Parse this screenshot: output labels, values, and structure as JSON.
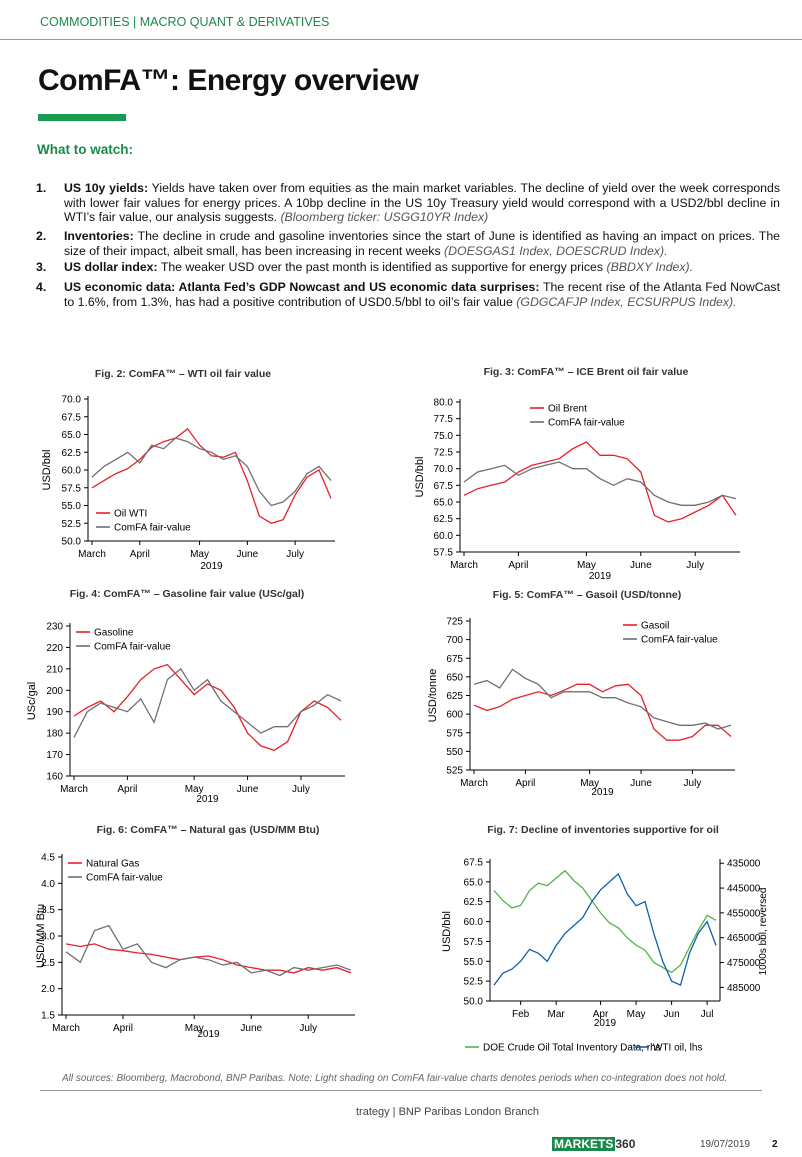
{
  "header": {
    "section": "COMMODITIES | MACRO QUANT & DERIVATIVES",
    "title": "ComFA™: Energy overview"
  },
  "what_to_watch": {
    "heading": "What to watch:",
    "items": [
      {
        "number": "1.",
        "label": "US 10y yields:",
        "text": "Yields have taken over from equities as the main market variables. The decline of yield over the week corresponds with lower fair values for energy prices. A 10bp decline in the US 10y Treasury yield would correspond with a USD2/bbl decline in WTI’s fair value, our analysis suggests.",
        "source": "(Bloomberg ticker: USGG10YR Index)"
      },
      {
        "number": "2.",
        "label": "Inventories:",
        "text": "The decline in crude and gasoline inventories since the start of June is identified as having an impact on prices. The size of their impact, albeit small, has been increasing in recent weeks",
        "source": "(DOESGAS1 Index, DOESCRUD Index)."
      },
      {
        "number": "3.",
        "label": "US dollar index:",
        "text": "The weaker USD over the past month is identified as supportive for energy prices",
        "source": "(BBDXY Index)."
      },
      {
        "number": "4.",
        "label": "US economic data: Atlanta Fed’s GDP Nowcast and US economic data surprises:",
        "text": "The recent rise of the Atlanta Fed NowCast to 1.6%, from 1.3%, has had a positive contribution of USD0.5/bbl to oil’s fair value",
        "source": "(GDGCAFJP Index, ECSURPUS Index)."
      }
    ]
  },
  "chart_data": [
    {
      "type": "line",
      "title": "Fig. 2: ComFA™ – WTI oil fair value",
      "ylabel": "USD/bbl",
      "xlabel": "2019",
      "legend": "lower left",
      "categories": [
        "March",
        null,
        null,
        null,
        "April",
        null,
        null,
        null,
        null,
        "May",
        null,
        null,
        null,
        "June",
        null,
        null,
        null,
        "July",
        null,
        null,
        null
      ],
      "ylim": [
        50,
        70
      ],
      "yticks": [
        {
          "value": 50,
          "label": "50.0"
        },
        52.5,
        {
          "value": 55,
          "label": "55.0"
        },
        57.5,
        {
          "value": 60,
          "label": "60.0"
        },
        62.5,
        {
          "value": 65,
          "label": "65.0"
        },
        67.5,
        {
          "value": 70,
          "label": "70.0"
        }
      ],
      "series": [
        {
          "name": "Oil WTI",
          "color": "#e8202a",
          "values": [
            57.5,
            58.5,
            59.5,
            60.2,
            61.5,
            63.2,
            64.0,
            64.5,
            65.8,
            63.5,
            62.0,
            61.8,
            62.5,
            58.5,
            53.5,
            52.5,
            53.0,
            56.5,
            59.0,
            60.0,
            56.0
          ]
        },
        {
          "name": "ComFA fair-value",
          "color": "#707070",
          "values": [
            59.0,
            60.5,
            61.5,
            62.5,
            61.0,
            63.5,
            63.0,
            64.5,
            64.0,
            63.0,
            62.5,
            61.5,
            62.0,
            60.5,
            57.0,
            55.0,
            55.5,
            57.0,
            59.5,
            60.5,
            58.5
          ]
        }
      ]
    },
    {
      "type": "line",
      "title": "Fig. 3: ComFA™ – ICE Brent oil fair value",
      "ylabel": "USD/bbl",
      "xlabel": "2019",
      "legend": "upper center",
      "categories": [
        "March",
        null,
        null,
        null,
        "April",
        null,
        null,
        null,
        null,
        "May",
        null,
        null,
        null,
        "June",
        null,
        null,
        null,
        "July",
        null,
        null,
        null
      ],
      "ylim": [
        57.5,
        80
      ],
      "yticks": [
        57.5,
        {
          "value": 60,
          "label": "60.0"
        },
        62.5,
        {
          "value": 65,
          "label": "65.0"
        },
        67.5,
        {
          "value": 70,
          "label": "70.0"
        },
        72.5,
        {
          "value": 75,
          "label": "75.0"
        },
        77.5,
        {
          "value": 80,
          "label": "80.0"
        }
      ],
      "series": [
        {
          "name": "Oil Brent",
          "color": "#e8202a",
          "values": [
            66.0,
            67.0,
            67.5,
            68.0,
            69.5,
            70.5,
            71.0,
            71.5,
            73.0,
            74.0,
            72.0,
            72.0,
            71.5,
            69.5,
            63.0,
            62.0,
            62.5,
            63.5,
            64.5,
            66.0,
            63.0
          ]
        },
        {
          "name": "ComFA fair-value",
          "color": "#707070",
          "values": [
            68.0,
            69.5,
            70.0,
            70.5,
            69.0,
            70.0,
            70.5,
            71.0,
            70.0,
            70.0,
            68.5,
            67.5,
            68.5,
            68.0,
            66.0,
            65.0,
            64.5,
            64.5,
            65.0,
            66.0,
            65.5
          ]
        }
      ]
    },
    {
      "type": "line",
      "title": "Fig. 4: ComFA™ – Gasoline fair value (USc/gal)",
      "ylabel": "USc/gal",
      "xlabel": "2019",
      "legend": "upper left",
      "categories": [
        "March",
        null,
        null,
        null,
        "April",
        null,
        null,
        null,
        null,
        "May",
        null,
        null,
        null,
        "June",
        null,
        null,
        null,
        "July",
        null,
        null,
        null
      ],
      "ylim": [
        160,
        230
      ],
      "yticks": [
        160,
        170,
        180,
        190,
        200,
        210,
        220,
        230
      ],
      "series": [
        {
          "name": "Gasoline",
          "color": "#e8202a",
          "values": [
            188,
            192,
            195,
            190,
            197,
            205,
            210,
            212,
            205,
            198,
            203,
            200,
            192,
            180,
            174,
            172,
            176,
            190,
            195,
            192,
            186
          ]
        },
        {
          "name": "ComFA fair-value",
          "color": "#707070",
          "values": [
            178,
            190,
            194,
            192,
            190,
            196,
            185,
            205,
            210,
            200,
            205,
            195,
            190,
            185,
            180,
            183,
            183,
            190,
            193,
            198,
            195
          ]
        }
      ]
    },
    {
      "type": "line",
      "title": "Fig. 5: ComFA™ – Gasoil (USD/tonne)",
      "ylabel": "USD/tonne",
      "xlabel": "2019",
      "legend": "upper right",
      "categories": [
        "March",
        null,
        null,
        null,
        "April",
        null,
        null,
        null,
        null,
        "May",
        null,
        null,
        null,
        "June",
        null,
        null,
        null,
        "July",
        null,
        null,
        null
      ],
      "ylim": [
        525,
        725
      ],
      "yticks": [
        525,
        550,
        575,
        600,
        625,
        650,
        675,
        700,
        725
      ],
      "series": [
        {
          "name": "Gasoil",
          "color": "#e8202a",
          "values": [
            612,
            605,
            610,
            620,
            625,
            630,
            625,
            632,
            640,
            640,
            630,
            638,
            640,
            625,
            580,
            565,
            565,
            570,
            585,
            585,
            570
          ]
        },
        {
          "name": "ComFA fair-value",
          "color": "#707070",
          "values": [
            640,
            645,
            635,
            660,
            648,
            640,
            622,
            630,
            630,
            630,
            622,
            622,
            615,
            610,
            595,
            590,
            585,
            585,
            588,
            580,
            585
          ]
        }
      ]
    },
    {
      "type": "line",
      "title": "Fig. 6: ComFA™ – Natural gas (USD/MM Btu)",
      "ylabel": "USD/MM Btu",
      "xlabel": "2019",
      "legend": "upper left",
      "categories": [
        "March",
        null,
        null,
        null,
        "April",
        null,
        null,
        null,
        null,
        "May",
        null,
        null,
        null,
        "June",
        null,
        null,
        null,
        "July",
        null,
        null,
        null
      ],
      "ylim": [
        1.5,
        4.5
      ],
      "yticks": [
        1.5,
        {
          "value": 2,
          "label": "2.0"
        },
        2.5,
        {
          "value": 3,
          "label": "3.0"
        },
        3.5,
        {
          "value": 4,
          "label": "4.0"
        },
        4.5
      ],
      "series": [
        {
          "name": "Natural Gas",
          "color": "#e8202a",
          "values": [
            2.85,
            2.8,
            2.85,
            2.75,
            2.72,
            2.68,
            2.65,
            2.6,
            2.55,
            2.6,
            2.62,
            2.55,
            2.45,
            2.4,
            2.35,
            2.35,
            2.3,
            2.4,
            2.35,
            2.4,
            2.3
          ]
        },
        {
          "name": "ComFA fair-value",
          "color": "#707070",
          "values": [
            2.7,
            2.5,
            3.1,
            3.2,
            2.75,
            2.85,
            2.5,
            2.4,
            2.55,
            2.6,
            2.55,
            2.45,
            2.5,
            2.3,
            2.35,
            2.25,
            2.4,
            2.35,
            2.4,
            2.45,
            2.35
          ]
        }
      ]
    },
    {
      "type": "line",
      "title": "Fig. 7: Decline of inventories supportive for oil",
      "ylabel": "USD/bbl",
      "y2label": "1000s bbl, reversed",
      "xlabel": "2019",
      "legend": "bottom",
      "categories": [
        null,
        null,
        null,
        "Feb",
        null,
        null,
        null,
        "Mar",
        null,
        null,
        null,
        null,
        "Apr",
        null,
        null,
        null,
        "May",
        null,
        null,
        null,
        "Jun",
        null,
        null,
        null,
        "Jul",
        null
      ],
      "ylim": [
        50,
        67.5
      ],
      "yticks": [
        {
          "value": 50,
          "label": "50.0"
        },
        52.5,
        {
          "value": 55,
          "label": "55.0"
        },
        57.5,
        {
          "value": 60,
          "label": "60.0"
        },
        62.5,
        {
          "value": 65,
          "label": "65.0"
        },
        67.5
      ],
      "y2lim": [
        490500,
        434500
      ],
      "y2ticks": [
        485000,
        475000,
        465000,
        455000,
        445000,
        435000
      ],
      "series": [
        {
          "name": "DOE Crude Oil Total Inventory Data, rhs",
          "color": "#4cb848",
          "axis": "y2",
          "values": [
            446000,
            450000,
            453000,
            452000,
            446000,
            443000,
            444000,
            441000,
            438000,
            442000,
            445000,
            450000,
            455000,
            459000,
            461000,
            465000,
            468000,
            470000,
            475000,
            477000,
            479000,
            476000,
            469000,
            462000,
            456000,
            458000
          ]
        },
        {
          "name": "WTI oil, lhs",
          "color": "#1060a8",
          "values": [
            52.0,
            53.5,
            54.0,
            55.0,
            56.5,
            56.0,
            55.0,
            57.0,
            58.5,
            59.5,
            60.5,
            62.5,
            64.0,
            65.0,
            66.0,
            63.5,
            62.0,
            62.5,
            58.5,
            55.0,
            52.5,
            52.0,
            56.0,
            58.5,
            60.0,
            57.0
          ]
        }
      ]
    }
  ],
  "footer": {
    "note": "All sources: Bloomberg, Macrobond, BNP Paribas. Note: Light shading on ComFA fair-value charts denotes periods when co-integration does not hold.",
    "branch": "trategy | BNP Paribas London Branch",
    "logo_a": "MARKETS",
    "logo_b": "360",
    "date": "19/07/2019",
    "page": "2"
  }
}
